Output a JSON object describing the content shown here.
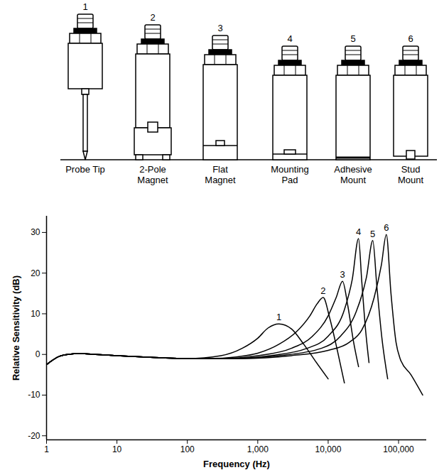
{
  "diagram": {
    "items": [
      {
        "number": 1,
        "label": [
          "Probe Tip"
        ]
      },
      {
        "number": 2,
        "label": [
          "2-Pole",
          "Magnet"
        ]
      },
      {
        "number": 3,
        "label": [
          "Flat",
          "Magnet"
        ]
      },
      {
        "number": 4,
        "label": [
          "Mounting",
          "Pad"
        ]
      },
      {
        "number": 5,
        "label": [
          "Adhesive",
          "Mount"
        ]
      },
      {
        "number": 6,
        "label": [
          "Stud",
          "Mount"
        ]
      }
    ]
  },
  "chart_data": {
    "type": "line",
    "xlabel": "Frequency (Hz)",
    "ylabel": "Relative Sensitivity (dB)",
    "log": "x",
    "grid": false,
    "line_style": "solid",
    "xlim": [
      1,
      250000
    ],
    "xticks": [
      1,
      10,
      100,
      {
        "value": 1000,
        "label": "1,000"
      },
      {
        "value": 10000,
        "label": "10,000"
      },
      {
        "value": 100000,
        "label": "100,000"
      }
    ],
    "ylim": [
      -21,
      34
    ],
    "yticks": [
      -20,
      -10,
      0,
      10,
      20,
      30
    ],
    "series": [
      {
        "name": "1",
        "color": "#000000",
        "x": [
          1,
          1.5,
          2,
          3,
          5,
          10,
          30,
          100,
          300,
          600,
          1000,
          1400,
          2000,
          3000,
          4500,
          6500,
          10000
        ],
        "values": [
          -2.5,
          -0.5,
          0,
          0.2,
          0,
          -0.3,
          -0.7,
          -1,
          -0.3,
          1.5,
          4,
          6.5,
          7.5,
          6.3,
          2.5,
          -1.5,
          -6
        ]
      },
      {
        "name": "2",
        "color": "#000000",
        "x": [
          1,
          1.5,
          2,
          3,
          5,
          10,
          30,
          100,
          200,
          500,
          1000,
          2000,
          3500,
          5500,
          7000,
          8500,
          10500,
          13500,
          17000
        ],
        "values": [
          -2.5,
          -0.5,
          0,
          0.2,
          0,
          -0.3,
          -0.7,
          -1,
          -1,
          -0.6,
          0.3,
          2.5,
          5.5,
          9.5,
          12.5,
          14,
          9,
          1,
          -7
        ]
      },
      {
        "name": "3",
        "color": "#000000",
        "x": [
          1,
          1.5,
          2,
          3,
          5,
          10,
          30,
          100,
          300,
          1000,
          3000,
          6000,
          10000,
          13000,
          16000,
          19000,
          23000,
          27000
        ],
        "values": [
          -2.5,
          -0.5,
          0,
          0.2,
          0,
          -0.3,
          -0.7,
          -1,
          -1,
          -0.3,
          1.5,
          4.5,
          9.5,
          14,
          18,
          12,
          3,
          -3
        ]
      },
      {
        "name": "4",
        "color": "#000000",
        "x": [
          1,
          1.5,
          2,
          3,
          5,
          10,
          30,
          100,
          400,
          1500,
          5000,
          10000,
          17000,
          22000,
          27000,
          30000,
          34000,
          38000
        ],
        "values": [
          -2.5,
          -0.5,
          0,
          0.2,
          0,
          -0.3,
          -0.7,
          -1,
          -1,
          -0.3,
          1.5,
          4.5,
          11,
          18.5,
          28.5,
          18,
          6,
          -2
        ]
      },
      {
        "name": "5",
        "color": "#000000",
        "x": [
          1,
          1.5,
          2,
          3,
          5,
          10,
          30,
          100,
          500,
          2000,
          8000,
          15000,
          25000,
          35000,
          43000,
          49000,
          58000,
          70000
        ],
        "values": [
          -2.5,
          -0.5,
          0,
          0.2,
          0,
          -0.3,
          -0.7,
          -1,
          -1,
          -0.3,
          1.5,
          4.5,
          10.5,
          19,
          28,
          17,
          4,
          -6
        ]
      },
      {
        "name": "6",
        "color": "#000000",
        "x": [
          1,
          1.5,
          2,
          3,
          5,
          10,
          30,
          100,
          600,
          3000,
          10000,
          20000,
          30000,
          45000,
          57000,
          67000,
          78000,
          92000,
          105000,
          150000,
          220000
        ],
        "values": [
          -2.5,
          -0.5,
          0,
          0.2,
          0,
          -0.3,
          -0.7,
          -1,
          -1,
          -0.3,
          1,
          3,
          6,
          14,
          22,
          29.5,
          15,
          3,
          -1,
          -5,
          -10
        ]
      }
    ]
  }
}
